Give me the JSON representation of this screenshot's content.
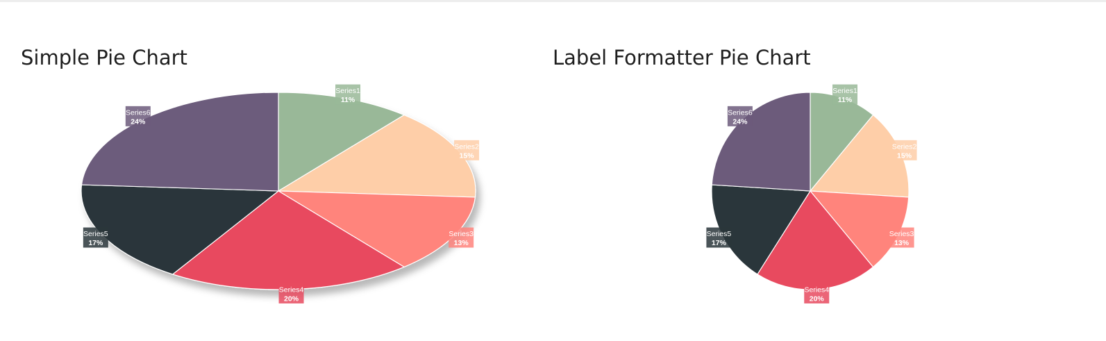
{
  "chart_data": [
    {
      "type": "pie",
      "title": "Simple Pie Chart",
      "slices": [
        {
          "name": "Series1",
          "label": "11%",
          "value": 11,
          "color": "#99b898"
        },
        {
          "name": "Series2",
          "label": "15%",
          "value": 15,
          "color": "#fecea8"
        },
        {
          "name": "Series3",
          "label": "13%",
          "value": 13,
          "color": "#ff847c"
        },
        {
          "name": "Series4",
          "label": "20%",
          "value": 20,
          "color": "#e84a5f"
        },
        {
          "name": "Series5",
          "label": "17%",
          "value": 17,
          "color": "#2a363b"
        },
        {
          "name": "Series6",
          "label": "24%",
          "value": 24,
          "color": "#6c5b7b"
        }
      ]
    },
    {
      "type": "pie",
      "title": "Label Formatter Pie Chart",
      "slices": [
        {
          "name": "Series1",
          "label": "11%",
          "value": 11,
          "color": "#99b898"
        },
        {
          "name": "Series2",
          "label": "15%",
          "value": 15,
          "color": "#fecea8"
        },
        {
          "name": "Series3",
          "label": "13%",
          "value": 13,
          "color": "#ff847c"
        },
        {
          "name": "Series4",
          "label": "20%",
          "value": 20,
          "color": "#e84a5f"
        },
        {
          "name": "Series5",
          "label": "17%",
          "value": 17,
          "color": "#2a363b"
        },
        {
          "name": "Series6",
          "label": "24%",
          "value": 24,
          "color": "#6c5b7b"
        }
      ]
    }
  ]
}
